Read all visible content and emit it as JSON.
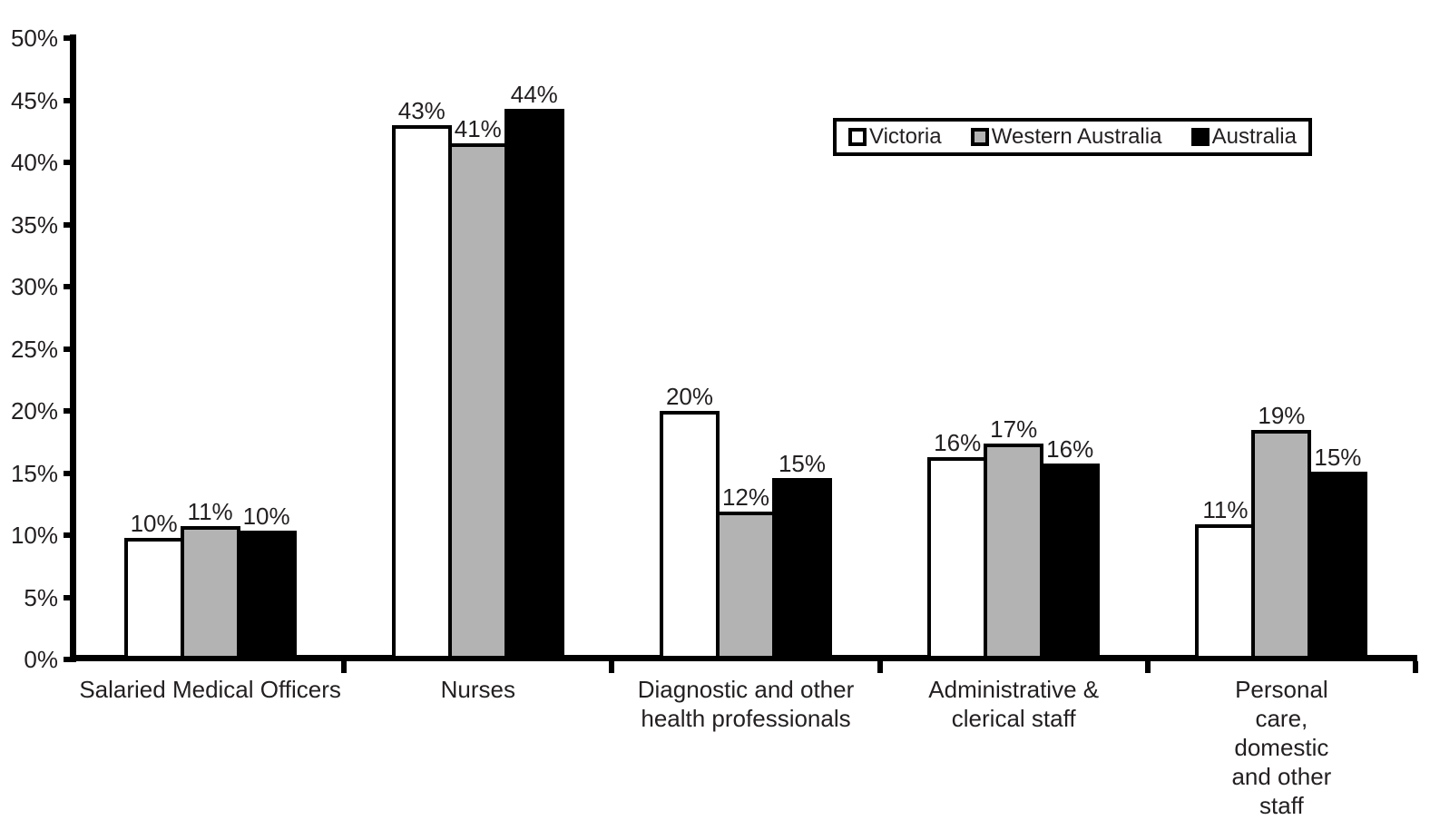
{
  "chart_data": {
    "type": "bar",
    "title": "",
    "xlabel": "",
    "ylabel": "",
    "ylim": [
      0,
      50
    ],
    "ytick_step": 5,
    "ytick_labels": [
      "0%",
      "5%",
      "10%",
      "15%",
      "20%",
      "25%",
      "30%",
      "35%",
      "40%",
      "45%",
      "50%"
    ],
    "grid": false,
    "legend_position": "top-right",
    "axis_color": "#000000",
    "text_color": "#231f20",
    "background_color": "#ffffff",
    "categories": [
      {
        "label_lines": [
          "Salaried Medical Officers"
        ]
      },
      {
        "label_lines": [
          "Nurses"
        ]
      },
      {
        "label_lines": [
          "Diagnostic and other",
          "health professionals"
        ]
      },
      {
        "label_lines": [
          "Administrative &",
          "clerical staff"
        ]
      },
      {
        "label_lines": [
          "Personal care, domestic",
          "and other staff"
        ]
      }
    ],
    "series": [
      {
        "name": "Victoria",
        "fill": "#ffffff",
        "border": "#000000",
        "values": [
          10,
          43,
          20,
          16,
          11
        ],
        "value_labels": [
          "10%",
          "43%",
          "20%",
          "16%",
          "11%"
        ]
      },
      {
        "name": "Western Australia",
        "fill": "#b3b3b3",
        "border": "#000000",
        "values": [
          11,
          41,
          12,
          17,
          19
        ],
        "value_labels": [
          "11%",
          "41%",
          "12%",
          "17%",
          "19%"
        ]
      },
      {
        "name": "Australia",
        "fill": "#000000",
        "border": "#000000",
        "values": [
          10,
          44,
          15,
          16,
          15
        ],
        "value_labels": [
          "10%",
          "44%",
          "15%",
          "16%",
          "15%"
        ]
      }
    ],
    "rendered_bar_heights_pct": [
      [
        9.8,
        43.0,
        20.0,
        16.3,
        10.9
      ],
      [
        10.7,
        41.5,
        11.9,
        17.4,
        18.5
      ],
      [
        10.4,
        44.3,
        14.6,
        15.8,
        15.1
      ]
    ]
  }
}
